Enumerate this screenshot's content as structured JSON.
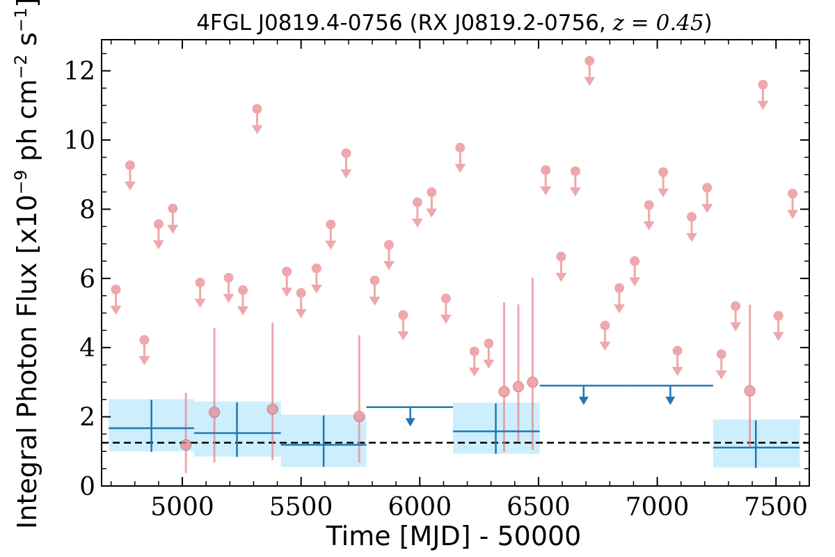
{
  "chart_data": {
    "type": "scatter",
    "title": {
      "source": "4FGL J0819.4-0756",
      "counterpart": "RX J0819.2-0756",
      "redshift_symbol": "z",
      "redshift_value": "0.45"
    },
    "xlabel": "Time [MJD] - 50000",
    "ylabel": {
      "base": "Integral Photon Flux [x10",
      "exp1": "−9",
      "mid": " ph cm",
      "exp2": "−2",
      "mid2": " s",
      "exp3": "−1",
      "end": "]"
    },
    "xlim": [
      4660,
      7640
    ],
    "ylim": [
      0,
      12.9
    ],
    "x_ticks": [
      5000,
      5500,
      6000,
      6500,
      7000,
      7500
    ],
    "x_tick_labels": [
      "5000",
      "5500",
      "6000",
      "6500",
      "7000",
      "7500"
    ],
    "y_ticks": [
      0,
      2,
      4,
      6,
      8,
      10,
      12
    ],
    "y_tick_labels": [
      "0",
      "2",
      "4",
      "6",
      "8",
      "10",
      "12"
    ],
    "grid": false,
    "mean_flux": 1.25,
    "colors": {
      "fine_bins": "#e8878d",
      "coarse_bins": "#1f77b4",
      "coarse_band": "#cdeefc",
      "mean_line": "#000000"
    },
    "fine_upper_limits": [
      {
        "x": 4720,
        "y": 5.68
      },
      {
        "x": 4780,
        "y": 9.27
      },
      {
        "x": 4840,
        "y": 4.22
      },
      {
        "x": 4900,
        "y": 7.57
      },
      {
        "x": 4960,
        "y": 8.02
      },
      {
        "x": 5075,
        "y": 5.88
      },
      {
        "x": 5195,
        "y": 6.02
      },
      {
        "x": 5255,
        "y": 5.66
      },
      {
        "x": 5315,
        "y": 10.9
      },
      {
        "x": 5440,
        "y": 6.2
      },
      {
        "x": 5500,
        "y": 5.58
      },
      {
        "x": 5565,
        "y": 6.29
      },
      {
        "x": 5625,
        "y": 7.56
      },
      {
        "x": 5690,
        "y": 9.62
      },
      {
        "x": 5810,
        "y": 5.94
      },
      {
        "x": 5870,
        "y": 6.97
      },
      {
        "x": 5930,
        "y": 4.94
      },
      {
        "x": 5990,
        "y": 8.2
      },
      {
        "x": 6050,
        "y": 8.49
      },
      {
        "x": 6110,
        "y": 5.42
      },
      {
        "x": 6170,
        "y": 9.78
      },
      {
        "x": 6230,
        "y": 3.89
      },
      {
        "x": 6290,
        "y": 4.12
      },
      {
        "x": 6530,
        "y": 9.13
      },
      {
        "x": 6595,
        "y": 6.63
      },
      {
        "x": 6655,
        "y": 9.1
      },
      {
        "x": 6715,
        "y": 12.29
      },
      {
        "x": 6780,
        "y": 4.64
      },
      {
        "x": 6840,
        "y": 5.72
      },
      {
        "x": 6905,
        "y": 6.5
      },
      {
        "x": 6965,
        "y": 8.12
      },
      {
        "x": 7025,
        "y": 9.07
      },
      {
        "x": 7085,
        "y": 3.91
      },
      {
        "x": 7145,
        "y": 7.78
      },
      {
        "x": 7210,
        "y": 8.62
      },
      {
        "x": 7270,
        "y": 3.81
      },
      {
        "x": 7330,
        "y": 5.2
      },
      {
        "x": 7445,
        "y": 11.6
      },
      {
        "x": 7510,
        "y": 4.92
      },
      {
        "x": 7570,
        "y": 8.45
      }
    ],
    "fine_detections": [
      {
        "x": 5015,
        "y": 1.19,
        "low": 0.37,
        "high": 2.69
      },
      {
        "x": 5135,
        "y": 2.13,
        "low": 0.68,
        "high": 4.56
      },
      {
        "x": 5380,
        "y": 2.22,
        "low": 0.75,
        "high": 4.72
      },
      {
        "x": 5745,
        "y": 2.01,
        "low": 0.68,
        "high": 4.36
      },
      {
        "x": 6355,
        "y": 2.73,
        "low": 0.98,
        "high": 5.31
      },
      {
        "x": 6415,
        "y": 2.87,
        "low": 1.29,
        "high": 5.25
      },
      {
        "x": 6475,
        "y": 3.0,
        "low": 1.05,
        "high": 6.02
      },
      {
        "x": 7390,
        "y": 2.75,
        "low": 1.12,
        "high": 5.24
      }
    ],
    "coarse_detections": [
      {
        "x": 4870,
        "x0": 4690,
        "x1": 5050,
        "y": 1.67,
        "low": 0.98,
        "high": 2.49,
        "band_low": 1.0,
        "band_high": 2.51
      },
      {
        "x": 5230,
        "x0": 5050,
        "x1": 5415,
        "y": 1.53,
        "low": 0.84,
        "high": 2.42,
        "band_low": 0.85,
        "band_high": 2.44
      },
      {
        "x": 5595,
        "x0": 5415,
        "x1": 5775,
        "y": 1.19,
        "low": 0.55,
        "high": 2.04,
        "band_low": 0.55,
        "band_high": 2.06
      },
      {
        "x": 6320,
        "x0": 6140,
        "x1": 6505,
        "y": 1.58,
        "low": 0.93,
        "high": 2.39,
        "band_low": 0.93,
        "band_high": 2.41
      },
      {
        "x": 7415,
        "x0": 7235,
        "x1": 7600,
        "y": 1.11,
        "low": 0.52,
        "high": 1.9,
        "band_low": 0.53,
        "band_high": 1.92
      }
    ],
    "coarse_upper_limits": [
      {
        "x": 5960,
        "x0": 5775,
        "x1": 6140,
        "y": 2.28
      },
      {
        "x": 6690,
        "x0": 6505,
        "x1": 6870,
        "y": 2.9
      },
      {
        "x": 7055,
        "x0": 6870,
        "x1": 7235,
        "y": 2.9
      }
    ]
  }
}
